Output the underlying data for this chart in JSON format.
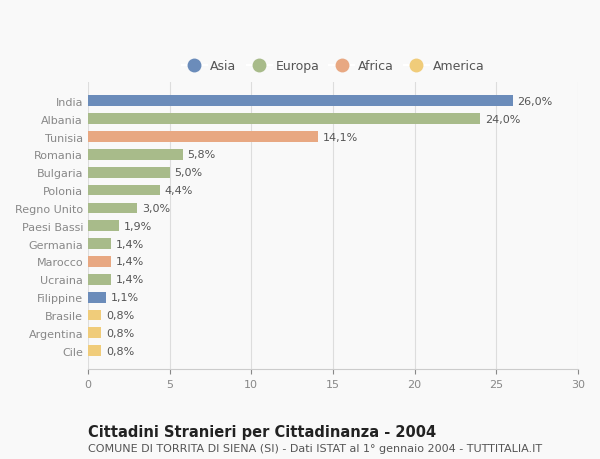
{
  "countries": [
    "India",
    "Albania",
    "Tunisia",
    "Romania",
    "Bulgaria",
    "Polonia",
    "Regno Unito",
    "Paesi Bassi",
    "Germania",
    "Marocco",
    "Ucraina",
    "Filippine",
    "Brasile",
    "Argentina",
    "Cile"
  ],
  "values": [
    26.0,
    24.0,
    14.1,
    5.8,
    5.0,
    4.4,
    3.0,
    1.9,
    1.4,
    1.4,
    1.4,
    1.1,
    0.8,
    0.8,
    0.8
  ],
  "labels": [
    "26,0%",
    "24,0%",
    "14,1%",
    "5,8%",
    "5,0%",
    "4,4%",
    "3,0%",
    "1,9%",
    "1,4%",
    "1,4%",
    "1,4%",
    "1,1%",
    "0,8%",
    "0,8%",
    "0,8%"
  ],
  "continents": [
    "Asia",
    "Europa",
    "Africa",
    "Europa",
    "Europa",
    "Europa",
    "Europa",
    "Europa",
    "Europa",
    "Africa",
    "Europa",
    "Asia",
    "America",
    "America",
    "America"
  ],
  "continent_colors": {
    "Asia": "#6b8cba",
    "Europa": "#a8bb8a",
    "Africa": "#e8a882",
    "America": "#f0cc7a"
  },
  "legend_order": [
    "Asia",
    "Europa",
    "Africa",
    "America"
  ],
  "xlim": [
    0,
    30
  ],
  "xticks": [
    0,
    5,
    10,
    15,
    20,
    25,
    30
  ],
  "title": "Cittadini Stranieri per Cittadinanza - 2004",
  "subtitle": "COMUNE DI TORRITA DI SIENA (SI) - Dati ISTAT al 1° gennaio 2004 - TUTTITALIA.IT",
  "background_color": "#f9f9f9",
  "bar_height": 0.6,
  "title_fontsize": 10.5,
  "subtitle_fontsize": 8.0,
  "label_fontsize": 8.0,
  "tick_fontsize": 8.0,
  "legend_fontsize": 9.0
}
